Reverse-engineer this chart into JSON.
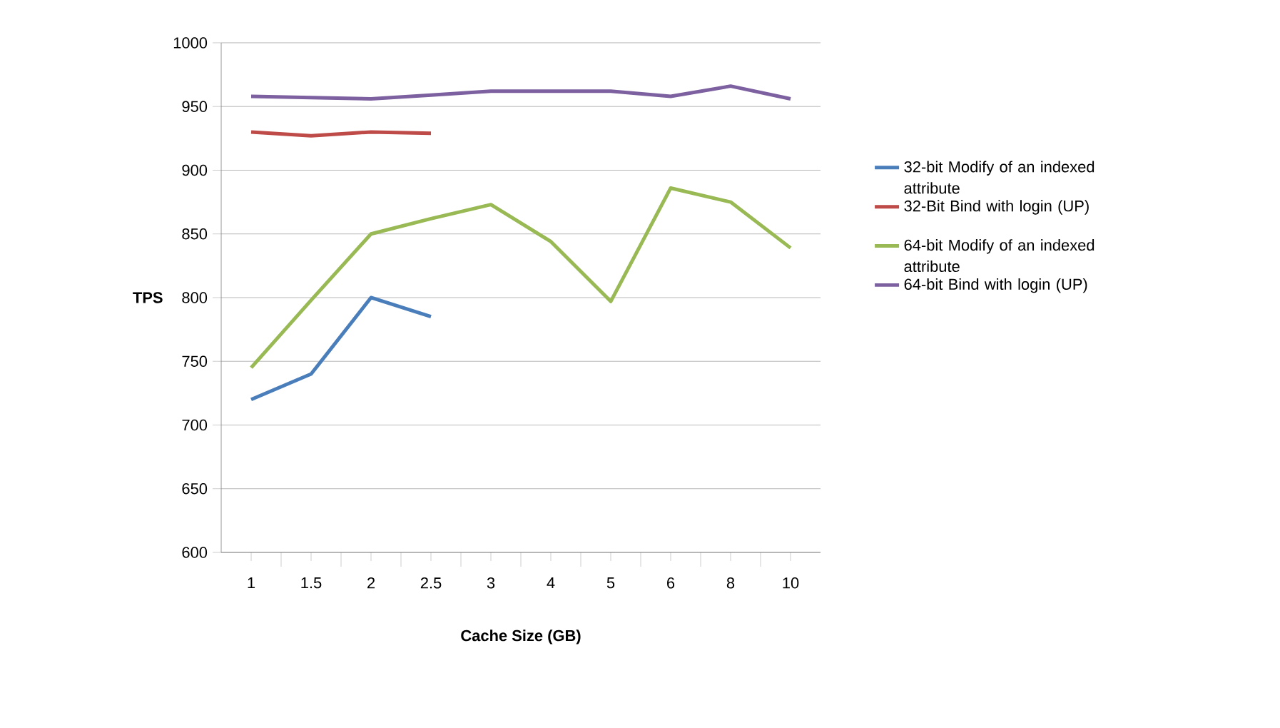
{
  "chart_data": {
    "type": "line",
    "xlabel": "Cache Size (GB)",
    "ylabel": "TPS",
    "categories": [
      "1",
      "1.5",
      "2",
      "2.5",
      "3",
      "4",
      "5",
      "6",
      "8",
      "10"
    ],
    "series": [
      {
        "name": "32-bit Modify of an indexed attribute",
        "color": "#4a7ebb",
        "values": [
          720,
          740,
          800,
          785,
          null,
          null,
          null,
          null,
          null,
          null
        ]
      },
      {
        "name": "32-Bit Bind with login (UP)",
        "color": "#be4b48",
        "values": [
          930,
          927,
          930,
          929,
          null,
          null,
          null,
          null,
          null,
          null
        ]
      },
      {
        "name": "64-bit Modify of an indexed attribute",
        "color": "#98b954",
        "values": [
          745,
          798,
          850,
          862,
          873,
          844,
          797,
          886,
          875,
          839
        ]
      },
      {
        "name": "64-bit Bind with login (UP)",
        "color": "#7d60a0",
        "values": [
          958,
          957,
          956,
          959,
          962,
          962,
          962,
          958,
          966,
          956
        ]
      }
    ],
    "ylim": [
      600,
      1000
    ],
    "yticks": [
      600,
      650,
      700,
      750,
      800,
      850,
      900,
      950,
      1000
    ],
    "grid": "y",
    "legend": "right",
    "marker": "none",
    "line_style": "solid"
  }
}
